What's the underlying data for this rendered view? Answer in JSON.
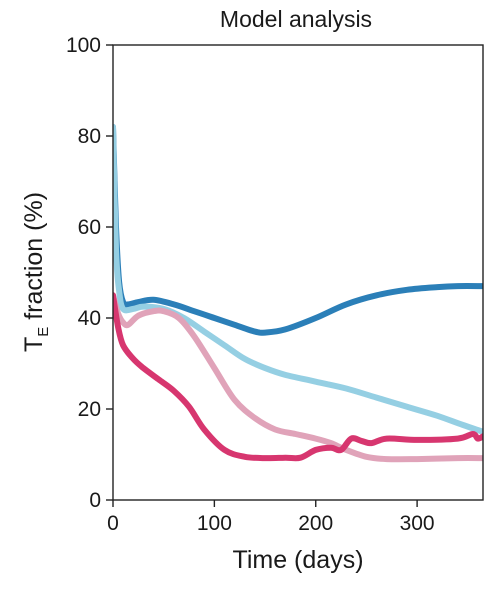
{
  "chart_data": {
    "type": "line",
    "title": "Model analysis",
    "xlabel": "Time (days)",
    "ylabel_main": "T",
    "ylabel_sub": "E",
    "ylabel_rest": " fraction (%)",
    "xlim": [
      0,
      365
    ],
    "ylim": [
      0,
      100
    ],
    "xticks": [
      0,
      100,
      200,
      300
    ],
    "yticks": [
      0,
      20,
      40,
      60,
      80,
      100
    ],
    "grid": false,
    "legend": "none",
    "series": [
      {
        "color": "#2b7fb8",
        "x": [
          0,
          3,
          6,
          10,
          15,
          25,
          40,
          60,
          80,
          100,
          120,
          140,
          150,
          170,
          200,
          230,
          260,
          290,
          320,
          340,
          365
        ],
        "y": [
          82,
          60,
          48,
          43.5,
          43,
          43.5,
          44,
          43,
          41.5,
          40,
          38.5,
          37,
          36.8,
          37.5,
          40,
          43,
          45,
          46.2,
          46.8,
          47,
          47
        ]
      },
      {
        "color": "#95cfe3",
        "x": [
          0,
          3,
          6,
          10,
          20,
          30,
          50,
          70,
          90,
          110,
          130,
          150,
          170,
          200,
          230,
          260,
          290,
          320,
          345,
          365
        ],
        "y": [
          82,
          55,
          46,
          42,
          42,
          42.5,
          42,
          40,
          37,
          34,
          31,
          29,
          27.5,
          26,
          24.5,
          22.5,
          20.5,
          18.5,
          16.5,
          15
        ]
      },
      {
        "color": "#e0a3b9",
        "x": [
          0,
          5,
          10,
          15,
          25,
          40,
          50,
          65,
          80,
          100,
          120,
          140,
          160,
          180,
          200,
          215,
          230,
          250,
          270,
          300,
          340,
          365
        ],
        "y": [
          45,
          41,
          39,
          38.5,
          40.5,
          41.5,
          41.5,
          40,
          36,
          29,
          22,
          18,
          15.5,
          14.5,
          13.5,
          12.5,
          11,
          9.5,
          9,
          9,
          9.2,
          9.2
        ]
      },
      {
        "color": "#d7366f",
        "x": [
          0,
          5,
          10,
          20,
          30,
          45,
          60,
          75,
          90,
          110,
          130,
          150,
          170,
          185,
          200,
          215,
          225,
          235,
          245,
          255,
          270,
          300,
          340,
          355,
          360,
          365
        ],
        "y": [
          45,
          38,
          34,
          31,
          29,
          26.5,
          24,
          20.5,
          15.5,
          11,
          9.5,
          9.2,
          9.3,
          9.3,
          11,
          11.5,
          11,
          13.5,
          13,
          12.5,
          13.5,
          13.2,
          13.5,
          14.5,
          13.5,
          14
        ]
      }
    ]
  }
}
